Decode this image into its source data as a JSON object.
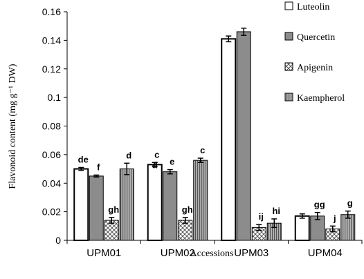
{
  "chart_data": {
    "type": "bar",
    "xlabel": "Accessions",
    "ylabel": "Flavonoid content (mg g⁻¹ DW)",
    "ylim": [
      0,
      0.16
    ],
    "yticks": [
      "0",
      "0.02",
      "0.04",
      "0.06",
      "0.08",
      "0.1",
      "0.12",
      "0.14",
      "0.16"
    ],
    "categories": [
      "UPM01",
      "UPM02",
      "UPM03",
      "UPM04"
    ],
    "legend_position": "top-right",
    "series": [
      {
        "name": "Luteolin",
        "pattern": "white",
        "values": [
          0.05,
          0.053,
          0.141,
          0.017
        ],
        "errors": [
          0.001,
          0.0015,
          0.002,
          0.0015
        ],
        "letters": [
          "de",
          "c",
          "",
          ""
        ]
      },
      {
        "name": "Quercetin",
        "pattern": "gray",
        "values": [
          0.045,
          0.048,
          0.146,
          0.017
        ],
        "errors": [
          0.0007,
          0.0015,
          0.0025,
          0.0025
        ],
        "letters": [
          "f",
          "e",
          "",
          "gg"
        ]
      },
      {
        "name": "Apigenin",
        "pattern": "hatch",
        "values": [
          0.014,
          0.014,
          0.009,
          0.008
        ],
        "errors": [
          0.002,
          0.002,
          0.002,
          0.002
        ],
        "letters": [
          "gh",
          "gh",
          "ij",
          "j"
        ]
      },
      {
        "name": "Kaempherol",
        "pattern": "striped",
        "values": [
          0.05,
          0.056,
          0.012,
          0.018
        ],
        "errors": [
          0.004,
          0.0015,
          0.003,
          0.0025
        ],
        "letters": [
          "d",
          "c",
          "hi",
          "g"
        ]
      }
    ],
    "extra_letters": [
      {
        "text": "d",
        "category": 1,
        "series": 0
      }
    ]
  }
}
